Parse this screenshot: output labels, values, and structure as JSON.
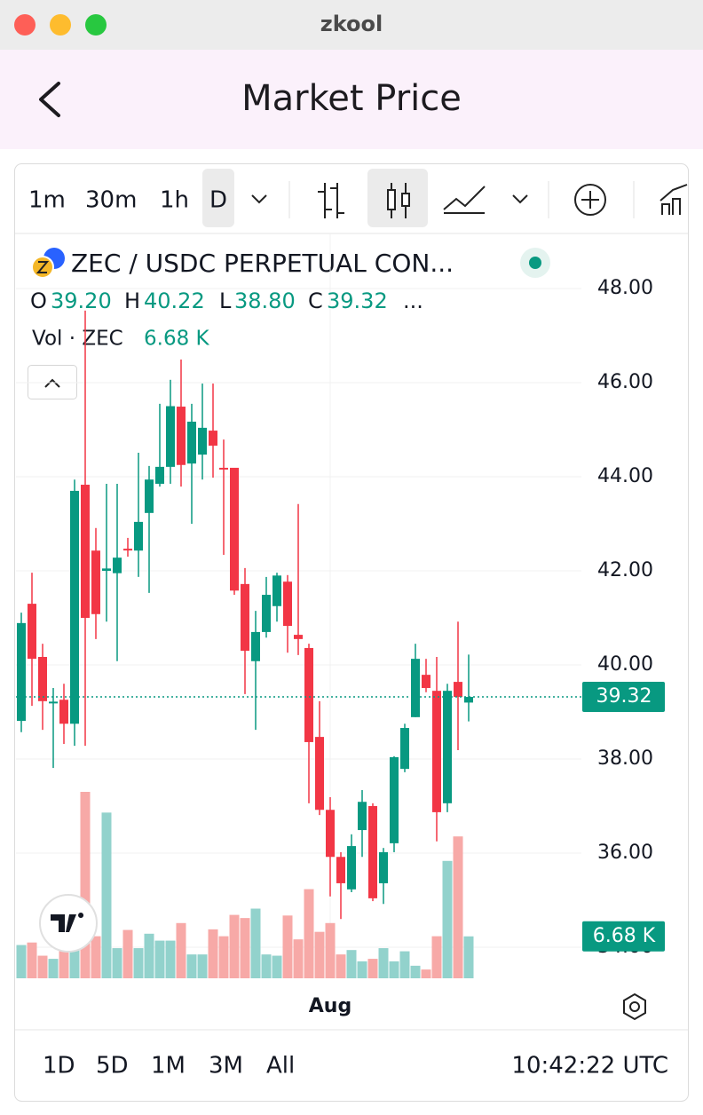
{
  "window_title": "zkool",
  "header": {
    "title": "Market Price"
  },
  "toolbar": {
    "intervals": [
      "1m",
      "30m",
      "1h",
      "D"
    ]
  },
  "chart_data": {
    "type": "candlestick",
    "title": "ZEC / USDC PERPETUAL CON...",
    "legend": [
      {
        "key": "O",
        "label": "39.20"
      },
      {
        "key": "H",
        "label": "40.22"
      },
      {
        "key": "L",
        "label": "38.80"
      },
      {
        "key": "C",
        "label": "39.32"
      }
    ],
    "legend_more": "...",
    "volume_title": "Vol · ZEC",
    "volume_label": "6.68 K",
    "price_label": "39.32",
    "categories": [
      null,
      null,
      null,
      null,
      null,
      null,
      null,
      null,
      null,
      null,
      null,
      null,
      null,
      null,
      null,
      null,
      null,
      null,
      null,
      null,
      null,
      null,
      null,
      null,
      null,
      null,
      null,
      null,
      null,
      "Aug",
      null,
      null,
      null,
      null,
      null,
      null,
      null,
      null,
      null,
      null,
      null,
      null,
      null
    ],
    "open": [
      38.81,
      41.3,
      40.17,
      39.2,
      39.26,
      38.75,
      43.83,
      42.43,
      42.0,
      41.95,
      42.47,
      42.43,
      43.23,
      43.85,
      44.21,
      45.49,
      44.28,
      44.47,
      44.98,
      44.19,
      44.19,
      41.72,
      40.08,
      40.7,
      41.25,
      41.77,
      40.64,
      40.36,
      38.47,
      36.92,
      35.92,
      35.23,
      36.49,
      37.0,
      35.36,
      36.21,
      37.79,
      38.89,
      39.79,
      39.45,
      37.06,
      39.64,
      39.2
    ],
    "high": [
      41.11,
      41.96,
      40.45,
      39.51,
      39.6,
      43.94,
      47.53,
      42.91,
      43.85,
      43.85,
      42.7,
      44.51,
      44.23,
      45.55,
      46.06,
      46.49,
      45.55,
      45.98,
      45.98,
      44.79,
      44.19,
      42.06,
      41.15,
      41.87,
      41.96,
      41.91,
      43.42,
      40.45,
      39.23,
      37.19,
      36.02,
      36.4,
      37.34,
      37.06,
      36.11,
      38.06,
      38.75,
      40.45,
      40.13,
      40.17,
      39.6,
      40.92,
      40.22
    ],
    "low": [
      38.57,
      39.13,
      38.62,
      37.81,
      38.32,
      38.28,
      38.28,
      40.55,
      40.92,
      40.08,
      42.3,
      41.87,
      41.53,
      43.79,
      43.85,
      43.79,
      43.0,
      43.94,
      43.98,
      42.34,
      41.49,
      39.38,
      38.62,
      40.58,
      40.92,
      40.26,
      40.21,
      37.06,
      36.81,
      35.08,
      34.6,
      35.17,
      35.92,
      34.98,
      34.92,
      36.02,
      37.72,
      38.89,
      39.42,
      36.25,
      36.87,
      38.19,
      38.8
    ],
    "close": [
      40.89,
      40.13,
      39.23,
      39.22,
      38.75,
      43.7,
      41.0,
      41.08,
      42.05,
      42.28,
      42.45,
      43.04,
      43.94,
      44.21,
      45.5,
      44.25,
      45.17,
      45.04,
      44.66,
      44.17,
      41.58,
      40.3,
      40.7,
      41.49,
      41.9,
      40.83,
      40.55,
      38.36,
      36.92,
      35.92,
      35.36,
      36.15,
      37.09,
      35.04,
      36.02,
      38.04,
      38.66,
      40.13,
      39.51,
      36.87,
      39.45,
      39.32,
      39.32
    ],
    "volume": [
      5.3,
      5.7,
      3.6,
      3.1,
      4.8,
      6.0,
      29.7,
      6.7,
      26.4,
      4.8,
      7.7,
      4.8,
      7.1,
      6.0,
      6.0,
      8.8,
      3.8,
      3.8,
      7.8,
      6.7,
      10.1,
      9.6,
      11.1,
      3.8,
      3.6,
      10.0,
      6.2,
      14.2,
      7.4,
      8.8,
      3.8,
      4.5,
      2.7,
      3.1,
      4.8,
      2.7,
      4.3,
      2.0,
      1.4,
      6.7,
      18.7,
      22.6,
      6.68
    ],
    "up_color": "#089981",
    "down_color": "#f23645",
    "up_volume_color": "#92d2cc",
    "down_volume_color": "#f7a9a7",
    "ylim": [
      33.34,
      49.17
    ],
    "yticks": [
      {
        "value": 34,
        "label": "34.00"
      },
      {
        "value": 36,
        "label": "36.00"
      },
      {
        "value": 38,
        "label": "38.00"
      },
      {
        "value": 40,
        "label": "40.00"
      },
      {
        "value": 42,
        "label": "42.00"
      },
      {
        "value": 44,
        "label": "44.00"
      },
      {
        "value": 46,
        "label": "46.00"
      },
      {
        "value": 48,
        "label": "48.00"
      }
    ],
    "grid": true
  },
  "ranges": [
    "1D",
    "5D",
    "1M",
    "3M",
    "All"
  ],
  "clock": "10:42:22 UTC"
}
